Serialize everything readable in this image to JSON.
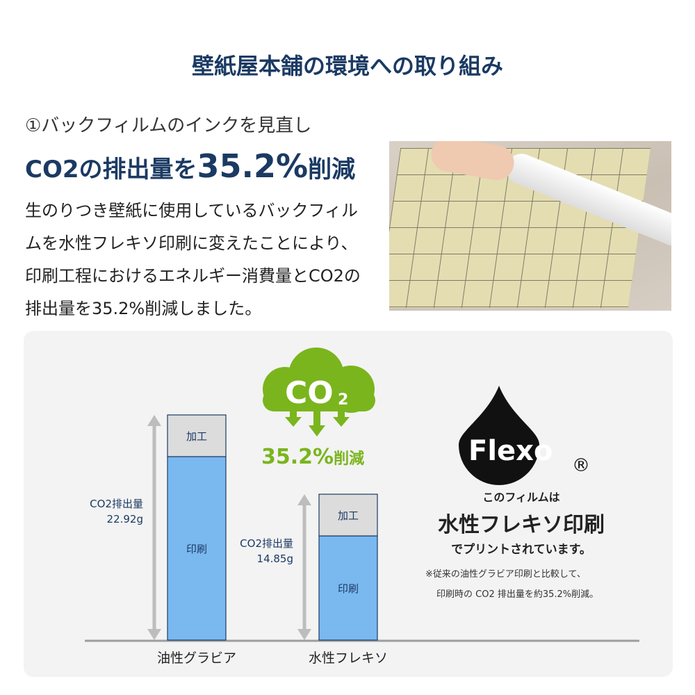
{
  "title": "壁紙屋本舗の環境への取り組み",
  "section": {
    "subtitle": "①バックフィルムのインクを見直し",
    "headline_pre": "CO2の排出量を",
    "headline_value": "35.2%",
    "headline_post": "削減",
    "body": "生のりつき壁紙に使用しているバックフィルムを水性フレキソ印刷に変えたことにより、印刷工程におけるエネルギー消費量とCO2の排出量を35.2%削減しました。"
  },
  "cloud": {
    "label": "CO",
    "sub": "2",
    "reduction_value": "35.2%",
    "reduction_suffix": "削減",
    "color": "#7ab51d"
  },
  "chart_data": {
    "type": "bar",
    "stacked": true,
    "categories": [
      "油性グラビア",
      "水性フレキソ"
    ],
    "totals": [
      22.92,
      14.85
    ],
    "total_labels": [
      {
        "line1": "CO2排出量",
        "line2": "22.92g"
      },
      {
        "line1": "CO2排出量",
        "line2": "14.85g"
      }
    ],
    "segments": [
      {
        "name": "印刷",
        "color": "#7ab8f0"
      },
      {
        "name": "加工",
        "color": "#dcdcdc"
      }
    ],
    "unit": "g"
  },
  "flexo": {
    "logo_text": "Flexo",
    "registered": "®",
    "line1": "このフィルムは",
    "line2": "水性フレキソ印刷",
    "line3": "でプリントされています。",
    "note1": "※従来の油性グラビア印刷と比較して、",
    "note2": "印刷時の CO2 排出量を約35.2%削減。"
  }
}
